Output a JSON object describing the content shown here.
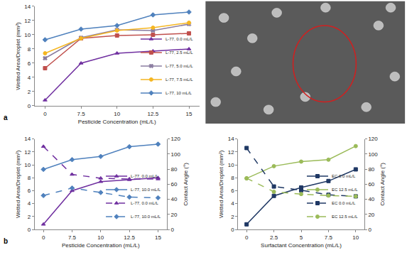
{
  "chart_data": [
    {
      "type": "line",
      "annotations": [
        {
          "text": "a"
        }
      ],
      "x_label": "Pesticide Concentration (mL/L)",
      "y_label": "Wetted Area/Droplet (mm²)",
      "categories": [
        "0",
        "7.5",
        "10",
        "12.5",
        "15"
      ],
      "ylim": [
        0,
        14
      ],
      "yticks": [
        0,
        2,
        4,
        6,
        8,
        10,
        12,
        14
      ],
      "grid": false,
      "legend": "bottom right",
      "series": [
        {
          "name": "L-77, 0.0 mL/L",
          "color": "#7030a0",
          "marker": "triangle-up",
          "line_style": "solid",
          "values": [
            0.8,
            6.0,
            7.4,
            7.7,
            8.0
          ]
        },
        {
          "name": "L-77, 2.5 mL/L",
          "color": "#c0504d",
          "marker": "square",
          "line_style": "solid",
          "values": [
            5.3,
            9.5,
            9.9,
            10.0,
            10.2
          ]
        },
        {
          "name": "L-77, 5.0 mL/L",
          "color": "#8a7ca0",
          "marker": "x",
          "line_style": "solid",
          "values": [
            6.7,
            9.6,
            10.7,
            10.6,
            11.5
          ]
        },
        {
          "name": "L-77, 7.5 mL/L",
          "color": "#f5b622",
          "marker": "circle",
          "line_style": "solid",
          "values": [
            7.4,
            9.5,
            10.6,
            11.0,
            11.7
          ]
        },
        {
          "name": "L-77, 10 mL/L",
          "color": "#4f81bd",
          "marker": "diamond",
          "line_style": "solid",
          "values": [
            9.3,
            10.8,
            11.3,
            12.8,
            13.2
          ]
        }
      ]
    },
    {
      "type": "line",
      "annotations": [
        {
          "text": "b"
        }
      ],
      "x_label": "Pesticide Concentration (mL/L)",
      "y_label": "Wetted Area/Droplet (mm²)",
      "y2_label": "Contact Angle (°)",
      "categories": [
        "0",
        "7.5",
        "10",
        "12.5",
        "15"
      ],
      "ylim": [
        0,
        14
      ],
      "yticks": [
        0,
        2,
        4,
        6,
        8,
        10,
        12,
        14
      ],
      "y2lim": [
        0,
        120
      ],
      "y2ticks": [
        0,
        20,
        40,
        60,
        80,
        100,
        120
      ],
      "grid": false,
      "legend": "bottom right",
      "series": [
        {
          "name": "L-77, 0.0 mL/L",
          "color": "#7030a0",
          "marker": "triangle-up",
          "line_style": "solid",
          "values": [
            0.8,
            6.0,
            7.4,
            7.7,
            8.0
          ]
        },
        {
          "name": "L-77, 10.0 mL/L",
          "color": "#4f81bd",
          "marker": "diamond",
          "line_style": "solid",
          "values": [
            9.3,
            10.8,
            11.3,
            12.8,
            13.2
          ]
        },
        {
          "name": "L-77, 0.0 mL/L",
          "color": "#7030a0",
          "marker": "triangle-up",
          "line_style": "dash",
          "axis": "y2",
          "values": [
            110,
            73,
            68,
            67,
            67
          ]
        },
        {
          "name": "L-77, 10.0 mL/L",
          "color": "#4f81bd",
          "marker": "diamond",
          "line_style": "dash",
          "axis": "y2",
          "values": [
            45,
            55,
            49,
            43,
            42
          ]
        }
      ]
    },
    {
      "type": "line",
      "x_label": "Surfactant Concentration (mL/L)",
      "y_label": "Wetted Area/Droplet (mm²)",
      "y2_label": "Contact Angle (°)",
      "categories": [
        "0",
        "2.5",
        "5",
        "7.5",
        "10"
      ],
      "ylim": [
        0,
        14
      ],
      "yticks": [
        0,
        2,
        4,
        6,
        8,
        10,
        12,
        14
      ],
      "y2lim": [
        0,
        120
      ],
      "y2ticks": [
        0,
        20,
        40,
        60,
        80,
        100,
        120
      ],
      "grid": false,
      "legend": "bottom right",
      "series": [
        {
          "name": "EC 0.0 mL/L",
          "color": "#1f3864",
          "marker": "square",
          "line_style": "solid",
          "values": [
            0.8,
            5.2,
            6.5,
            7.5,
            9.3
          ]
        },
        {
          "name": "EC 12.5 mL/L",
          "color": "#9bbb59",
          "marker": "circle",
          "line_style": "solid",
          "values": [
            7.9,
            9.8,
            10.5,
            10.8,
            12.9
          ]
        },
        {
          "name": "EC 0.0 mL/L",
          "color": "#1f3864",
          "marker": "square",
          "line_style": "dash",
          "axis": "y2",
          "values": [
            108,
            57,
            52,
            46,
            44
          ]
        },
        {
          "name": "EC 12.5 mL/L",
          "color": "#9bbb59",
          "marker": "circle",
          "line_style": "dash",
          "axis": "y2",
          "values": [
            68,
            50,
            47,
            45,
            44
          ]
        }
      ]
    }
  ]
}
